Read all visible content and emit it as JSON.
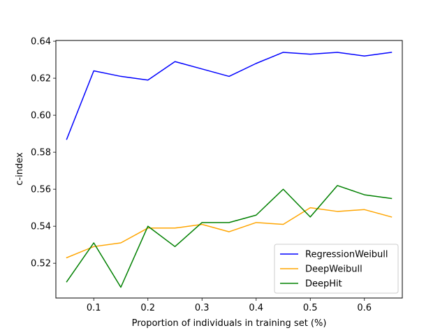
{
  "chart_data": {
    "type": "line",
    "xlabel": "Proportion of individuals in training set (%)",
    "ylabel": "c-index",
    "xlim": [
      0.03,
      0.67
    ],
    "ylim": [
      0.5012,
      0.6404
    ],
    "x_ticks": [
      0.1,
      0.2,
      0.3,
      0.4,
      0.5,
      0.6
    ],
    "x_tick_labels": [
      "0.1",
      "0.2",
      "0.3",
      "0.4",
      "0.5",
      "0.6"
    ],
    "y_ticks": [
      0.52,
      0.54,
      0.56,
      0.58,
      0.6,
      0.62,
      0.64
    ],
    "y_tick_labels": [
      "0.52",
      "0.54",
      "0.56",
      "0.58",
      "0.60",
      "0.62",
      "0.64"
    ],
    "grid": false,
    "legend_position": "bottom-right",
    "x": [
      0.05,
      0.1,
      0.15,
      0.2,
      0.25,
      0.3,
      0.35,
      0.4,
      0.45,
      0.5,
      0.55,
      0.6,
      0.65
    ],
    "series": [
      {
        "name": "RegressionWeibull",
        "color": "#0000ff",
        "values": [
          0.587,
          0.624,
          0.621,
          0.619,
          0.629,
          0.625,
          0.621,
          0.628,
          0.634,
          0.633,
          0.634,
          0.632,
          0.634
        ]
      },
      {
        "name": "DeepWeibull",
        "color": "#ffa500",
        "values": [
          0.523,
          0.529,
          0.531,
          0.539,
          0.539,
          0.541,
          0.537,
          0.542,
          0.541,
          0.55,
          0.548,
          0.549,
          0.545
        ]
      },
      {
        "name": "DeepHit",
        "color": "#008000",
        "values": [
          0.51,
          0.531,
          0.507,
          0.54,
          0.529,
          0.542,
          0.542,
          0.546,
          0.56,
          0.545,
          0.562,
          0.557,
          0.555
        ]
      }
    ]
  }
}
